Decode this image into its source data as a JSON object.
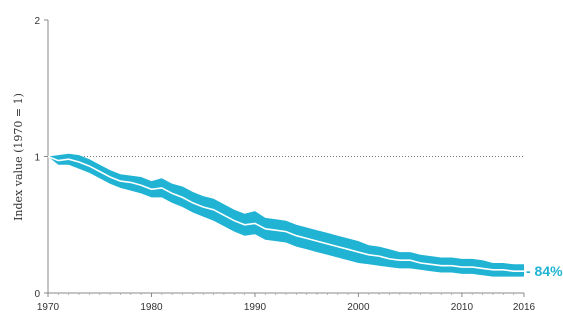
{
  "chart_data": {
    "type": "line",
    "ylabel": "Index value (1970 = 1)",
    "xlabel": "",
    "xlim": [
      1970,
      2016
    ],
    "ylim": [
      0,
      2
    ],
    "x_ticks": [
      1970,
      1980,
      1990,
      2000,
      2010,
      2016
    ],
    "x_tick_labels": [
      "1970",
      "1980",
      "1990",
      "2000",
      "2010",
      "2016"
    ],
    "y_ticks": [
      0,
      1,
      2
    ],
    "y_tick_labels": [
      "0",
      "1",
      "2"
    ],
    "reference_line": 1,
    "end_label": "- 84%",
    "band_color": "#20b3d3",
    "line_color": "#ffffff",
    "x": [
      1970,
      1971,
      1972,
      1973,
      1974,
      1975,
      1976,
      1977,
      1978,
      1979,
      1980,
      1981,
      1982,
      1983,
      1984,
      1985,
      1986,
      1987,
      1988,
      1989,
      1990,
      1991,
      1992,
      1993,
      1994,
      1995,
      1996,
      1997,
      1998,
      1999,
      2000,
      2001,
      2002,
      2003,
      2004,
      2005,
      2006,
      2007,
      2008,
      2009,
      2010,
      2011,
      2012,
      2013,
      2014,
      2015,
      2016
    ],
    "series": [
      {
        "values": [
          1.0,
          0.97,
          0.98,
          0.96,
          0.93,
          0.89,
          0.85,
          0.82,
          0.81,
          0.79,
          0.76,
          0.77,
          0.73,
          0.7,
          0.66,
          0.63,
          0.61,
          0.57,
          0.53,
          0.5,
          0.51,
          0.47,
          0.46,
          0.45,
          0.42,
          0.4,
          0.38,
          0.36,
          0.34,
          0.32,
          0.3,
          0.28,
          0.27,
          0.25,
          0.24,
          0.24,
          0.22,
          0.21,
          0.2,
          0.2,
          0.19,
          0.19,
          0.18,
          0.17,
          0.17,
          0.16,
          0.16
        ],
        "lower": [
          1.0,
          0.94,
          0.94,
          0.91,
          0.88,
          0.84,
          0.8,
          0.77,
          0.75,
          0.73,
          0.7,
          0.7,
          0.66,
          0.63,
          0.59,
          0.56,
          0.53,
          0.49,
          0.45,
          0.42,
          0.43,
          0.39,
          0.38,
          0.37,
          0.34,
          0.32,
          0.3,
          0.28,
          0.26,
          0.24,
          0.22,
          0.21,
          0.2,
          0.19,
          0.18,
          0.18,
          0.17,
          0.16,
          0.15,
          0.15,
          0.14,
          0.14,
          0.13,
          0.12,
          0.12,
          0.12,
          0.12
        ],
        "upper": [
          1.0,
          1.01,
          1.02,
          1.01,
          0.98,
          0.94,
          0.9,
          0.87,
          0.86,
          0.85,
          0.82,
          0.84,
          0.8,
          0.78,
          0.74,
          0.71,
          0.69,
          0.65,
          0.61,
          0.58,
          0.6,
          0.55,
          0.54,
          0.53,
          0.5,
          0.48,
          0.46,
          0.44,
          0.42,
          0.4,
          0.38,
          0.35,
          0.34,
          0.32,
          0.3,
          0.3,
          0.28,
          0.27,
          0.26,
          0.26,
          0.25,
          0.25,
          0.24,
          0.22,
          0.22,
          0.21,
          0.21
        ]
      }
    ],
    "grid": false
  }
}
